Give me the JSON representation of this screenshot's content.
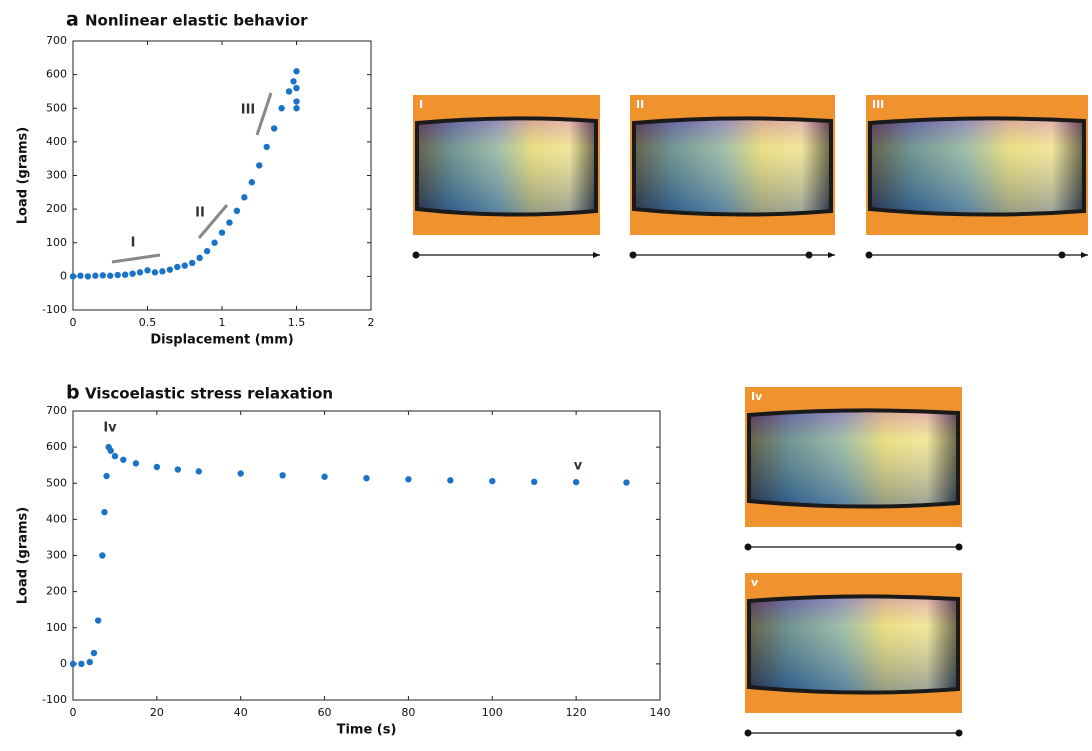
{
  "chart_data": [
    {
      "type": "scatter",
      "panel": "a",
      "title": "Nonlinear elastic behavior",
      "x_label": "Displacement (mm)",
      "y_label": "Load (grams)",
      "x": [
        0,
        0.05,
        0.1,
        0.15,
        0.2,
        0.25,
        0.3,
        0.35,
        0.4,
        0.45,
        0.5,
        0.55,
        0.6,
        0.65,
        0.7,
        0.75,
        0.8,
        0.85,
        0.9,
        0.95,
        1.0,
        1.05,
        1.1,
        1.15,
        1.2,
        1.25,
        1.3,
        1.35,
        1.4,
        1.45,
        1.48,
        1.5,
        1.5,
        1.5,
        1.5
      ],
      "values": [
        0,
        2,
        0,
        2,
        3,
        2,
        4,
        5,
        8,
        12,
        18,
        12,
        15,
        20,
        28,
        32,
        40,
        55,
        75,
        100,
        130,
        160,
        195,
        235,
        280,
        330,
        385,
        440,
        500,
        550,
        580,
        610,
        560,
        520,
        500
      ],
      "color": "#1a73c8",
      "xlim": [
        0,
        2
      ],
      "xticks": [
        0,
        0.5,
        1,
        1.5,
        2
      ],
      "ylim": [
        -100,
        700
      ],
      "yticks": [
        -100,
        0,
        100,
        200,
        300,
        400,
        500,
        600,
        700
      ],
      "annotations": [
        "I",
        "II",
        "III"
      ],
      "photo_labels": [
        "I",
        "II",
        "III"
      ]
    },
    {
      "type": "scatter",
      "panel": "b",
      "title": "Viscoelastic stress relaxation",
      "x_label": "Time (s)",
      "y_label": "Load (grams)",
      "x": [
        0,
        2,
        4,
        5,
        6,
        7,
        7.5,
        8,
        8.5,
        9,
        10,
        12,
        15,
        20,
        25,
        30,
        40,
        50,
        60,
        70,
        80,
        90,
        100,
        110,
        120,
        132
      ],
      "values": [
        0,
        0,
        5,
        30,
        120,
        300,
        420,
        520,
        600,
        590,
        575,
        565,
        555,
        545,
        538,
        533,
        527,
        522,
        518,
        514,
        511,
        508,
        506,
        504,
        503,
        502
      ],
      "color": "#1a73c8",
      "xlim": [
        0,
        140
      ],
      "xticks": [
        0,
        20,
        40,
        60,
        80,
        100,
        120,
        140
      ],
      "ylim": [
        -100,
        700
      ],
      "yticks": [
        -100,
        0,
        100,
        200,
        300,
        400,
        500,
        600,
        700
      ],
      "annotations": [
        "Iv",
        "v"
      ],
      "photo_labels": [
        "Iv",
        "v"
      ]
    }
  ]
}
